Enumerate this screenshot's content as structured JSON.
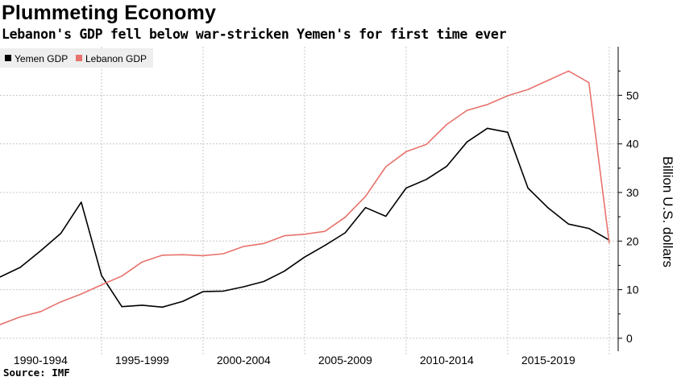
{
  "header": {
    "title": "Plummeting Economy",
    "subtitle": "Lebanon's GDP fell below war-stricken Yemen's for first time ever"
  },
  "footer": {
    "source": "Source: IMF"
  },
  "colors": {
    "yemen": "#000000",
    "lebanon": "#e8726d",
    "grid": "#c8c8c8",
    "legend_bg": "#eeeeee"
  },
  "chart_data": {
    "type": "line",
    "title": "Plummeting Economy",
    "subtitle": "Lebanon's GDP fell below war-stricken Yemen's for first time ever",
    "xlabel": "",
    "ylabel": "Billion U.S. dollars",
    "x": [
      1990,
      1991,
      1992,
      1993,
      1994,
      1995,
      1996,
      1997,
      1998,
      1999,
      2000,
      2001,
      2002,
      2003,
      2004,
      2005,
      2006,
      2007,
      2008,
      2009,
      2010,
      2011,
      2012,
      2013,
      2014,
      2015,
      2016,
      2017,
      2018,
      2019,
      2020
    ],
    "xlim": [
      1990,
      2020.6
    ],
    "x_tick_labels": [
      {
        "label": "1990-1994",
        "at": 1992
      },
      {
        "label": "1995-1999",
        "at": 1997
      },
      {
        "label": "2000-2004",
        "at": 2002
      },
      {
        "label": "2005-2009",
        "at": 2007
      },
      {
        "label": "2010-2014",
        "at": 2012
      },
      {
        "label": "2015-2019",
        "at": 2017
      }
    ],
    "x_gridlines": [
      1995,
      2000,
      2005,
      2010,
      2015,
      2020
    ],
    "ylim": [
      -2,
      60
    ],
    "y_ticks": [
      0,
      10,
      20,
      30,
      40,
      50
    ],
    "y_axis_side": "right",
    "grid": true,
    "legend_position": "top-left",
    "series": [
      {
        "name": "Yemen GDP",
        "color": "#000000",
        "values": [
          12.6,
          14.6,
          18.0,
          21.6,
          28.0,
          12.9,
          6.5,
          6.8,
          6.4,
          7.6,
          9.6,
          9.7,
          10.6,
          11.7,
          13.8,
          16.7,
          19.1,
          21.7,
          26.9,
          25.1,
          30.9,
          32.7,
          35.4,
          40.4,
          43.2,
          42.4,
          30.9,
          26.8,
          23.5,
          22.6,
          20.2
        ]
      },
      {
        "name": "Lebanon GDP",
        "color": "#e8726d",
        "values": [
          2.8,
          4.4,
          5.5,
          7.5,
          9.1,
          11.0,
          12.8,
          15.7,
          17.1,
          17.2,
          17.0,
          17.4,
          18.9,
          19.5,
          21.1,
          21.4,
          22.0,
          24.9,
          29.2,
          35.3,
          38.4,
          39.9,
          44.0,
          46.9,
          48.1,
          49.9,
          51.2,
          53.1,
          55.0,
          52.6,
          19.6
        ]
      }
    ]
  }
}
